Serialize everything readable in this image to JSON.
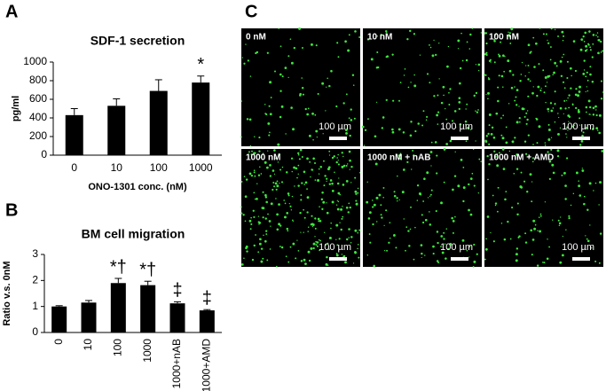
{
  "panels": [
    "A",
    "B",
    "C"
  ],
  "chart_data": [
    {
      "type": "bar",
      "title": "SDF-1 secretion",
      "y_label": "pg/ml",
      "x_label": "ONO-1301 conc. (nM)",
      "categories": [
        "0",
        "10",
        "100",
        "1000"
      ],
      "series": [
        {
          "color": "#000000",
          "values": [
            430,
            530,
            690,
            780
          ],
          "errors": [
            70,
            75,
            120,
            70
          ]
        }
      ],
      "annotations": [
        null,
        null,
        null,
        "*"
      ],
      "ylim": [
        0,
        1000
      ],
      "yticks": [
        0,
        200,
        400,
        600,
        800,
        1000
      ]
    },
    {
      "type": "bar",
      "title": "BM cell migration",
      "y_label": "Ratio v.s. 0nM",
      "categories": [
        "0",
        "10",
        "100",
        "1000",
        "1000+nAB",
        "1000+AMD"
      ],
      "series": [
        {
          "color": "#000000",
          "values": [
            1.0,
            1.15,
            1.9,
            1.82,
            1.12,
            0.85
          ],
          "errors": [
            0.03,
            0.08,
            0.18,
            0.15,
            0.06,
            0.03
          ]
        }
      ],
      "annotations": [
        null,
        null,
        "*†",
        "*†",
        "‡",
        "‡"
      ],
      "ylim": [
        0,
        3
      ],
      "yticks": [
        0,
        1,
        2,
        3
      ]
    }
  ],
  "images": [
    {
      "label": "0 nM",
      "scale": "100 µm"
    },
    {
      "label": "10 nM",
      "scale": "100 µm"
    },
    {
      "label": "100 nM",
      "scale": "100 µm"
    },
    {
      "label": "1000 nM",
      "scale": "100 µm"
    },
    {
      "label": "1000 nM + nAB",
      "scale": "100 µm"
    },
    {
      "label": "1000 nM + AMD",
      "scale": "100 µm"
    }
  ]
}
